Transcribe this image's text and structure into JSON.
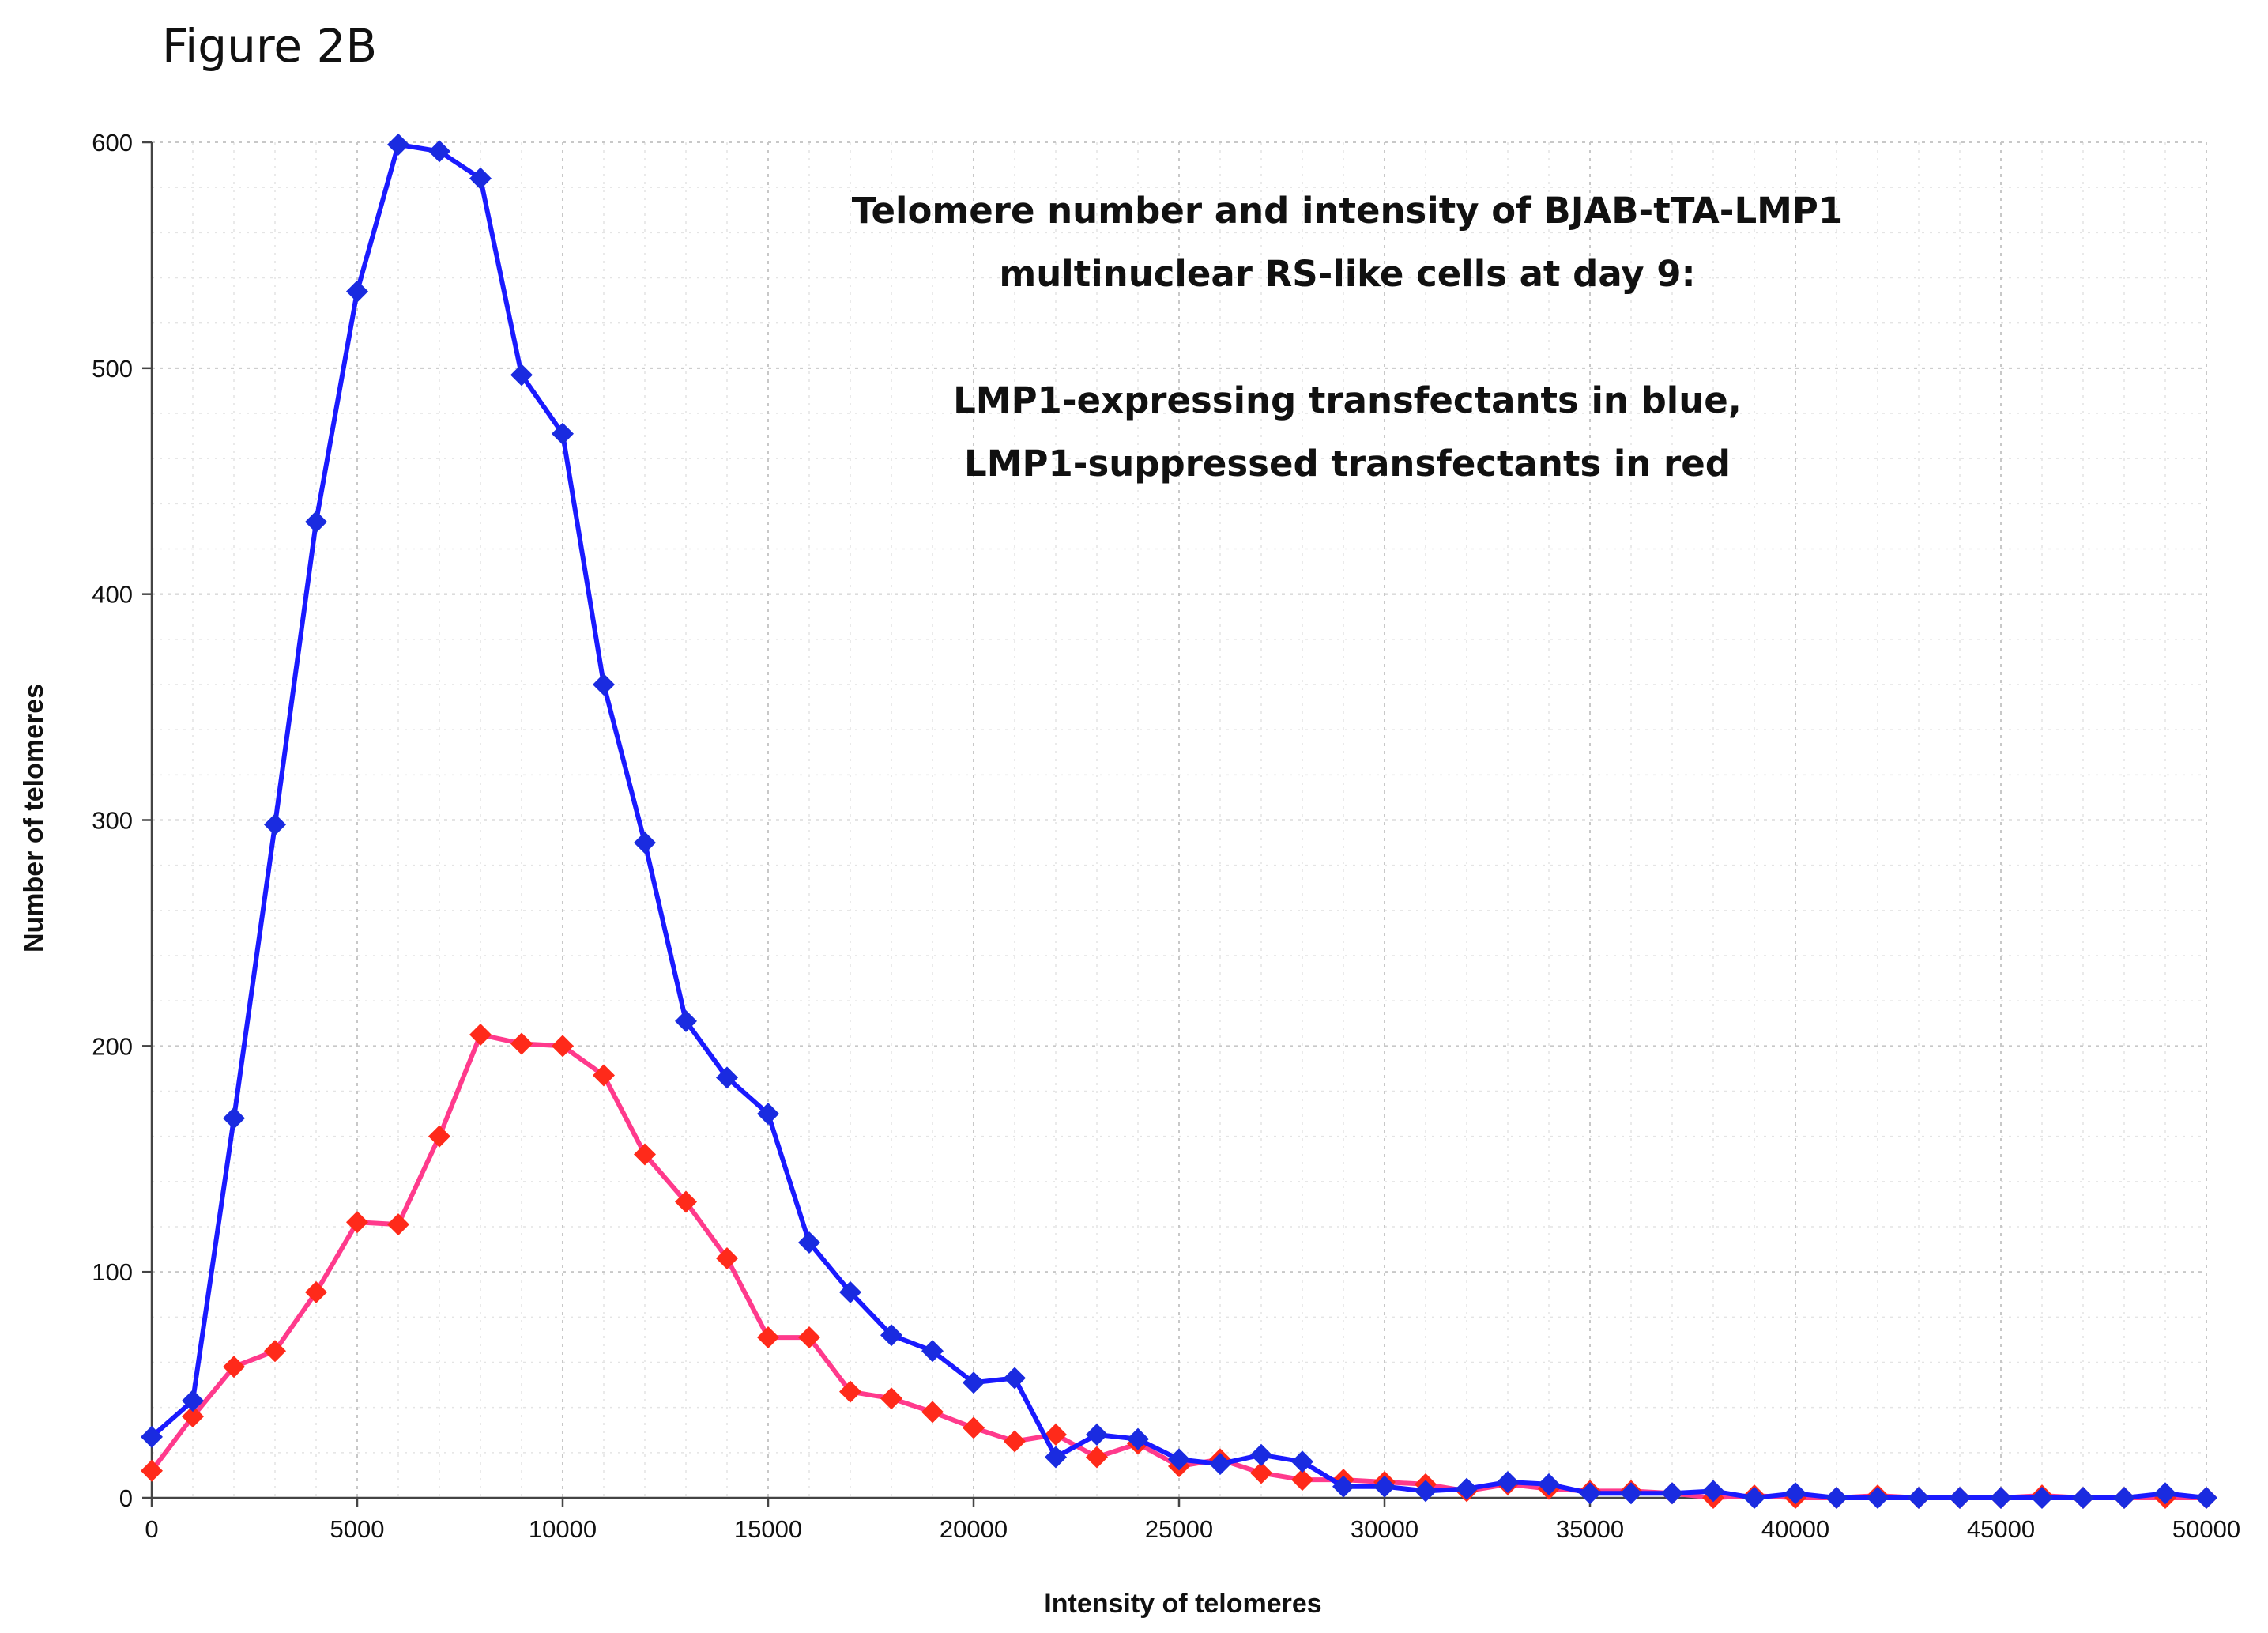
{
  "figure_label": "Figure 2B",
  "chart_data": {
    "type": "line",
    "title": "",
    "annotation_lines": [
      "Telomere number and intensity of BJAB-tTA-LMP1",
      "multinuclear RS-like cells at day 9:",
      "",
      "LMP1-expressing transfectants in blue,",
      "LMP1-suppressed transfectants in red"
    ],
    "xlabel": "Intensity of telomeres",
    "ylabel": "Number of telomeres",
    "xlim": [
      0,
      50000
    ],
    "ylim": [
      0,
      600
    ],
    "x_ticks": [
      0,
      5000,
      10000,
      15000,
      20000,
      25000,
      30000,
      35000,
      40000,
      45000,
      50000
    ],
    "x_tick_labels": [
      "0",
      "5000",
      "10000",
      "15000",
      "20000",
      "25000",
      "30000",
      "35000",
      "40000",
      "45000",
      "50000"
    ],
    "y_ticks": [
      0,
      100,
      200,
      300,
      400,
      500,
      600
    ],
    "y_tick_labels": [
      "0",
      "100",
      "200",
      "300",
      "400",
      "500",
      "600"
    ],
    "grid": true,
    "x": [
      0,
      1000,
      2000,
      3000,
      4000,
      5000,
      6000,
      7000,
      8000,
      9000,
      10000,
      11000,
      12000,
      13000,
      14000,
      15000,
      16000,
      17000,
      18000,
      19000,
      20000,
      21000,
      22000,
      23000,
      24000,
      25000,
      26000,
      27000,
      28000,
      29000,
      30000,
      31000,
      32000,
      33000,
      34000,
      35000,
      36000,
      37000,
      38000,
      39000,
      40000,
      41000,
      42000,
      43000,
      44000,
      45000,
      46000,
      47000,
      48000,
      49000,
      50000
    ],
    "series": [
      {
        "name": "LMP1-suppressed transfectants",
        "line_color": "#ff3a8c",
        "marker_color": "#ff2a1a",
        "values": [
          12,
          36,
          58,
          65,
          91,
          122,
          121,
          160,
          205,
          201,
          200,
          187,
          152,
          131,
          106,
          71,
          71,
          47,
          44,
          38,
          31,
          25,
          28,
          18,
          24,
          14,
          17,
          11,
          8,
          8,
          7,
          6,
          3,
          6,
          4,
          3,
          3,
          2,
          0,
          1,
          0,
          0,
          1,
          0,
          0,
          0,
          1,
          0,
          0,
          0,
          0
        ]
      },
      {
        "name": "LMP1-expressing transfectants",
        "line_color": "#1a1aff",
        "marker_color": "#1a2be0",
        "values": [
          27,
          43,
          168,
          298,
          432,
          534,
          599,
          596,
          584,
          497,
          471,
          360,
          290,
          211,
          186,
          170,
          113,
          91,
          72,
          65,
          51,
          53,
          18,
          28,
          26,
          17,
          15,
          19,
          16,
          5,
          5,
          3,
          4,
          7,
          6,
          2,
          2,
          2,
          3,
          0,
          2,
          0,
          0,
          0,
          0,
          0,
          0,
          0,
          0,
          2,
          0
        ]
      }
    ]
  }
}
